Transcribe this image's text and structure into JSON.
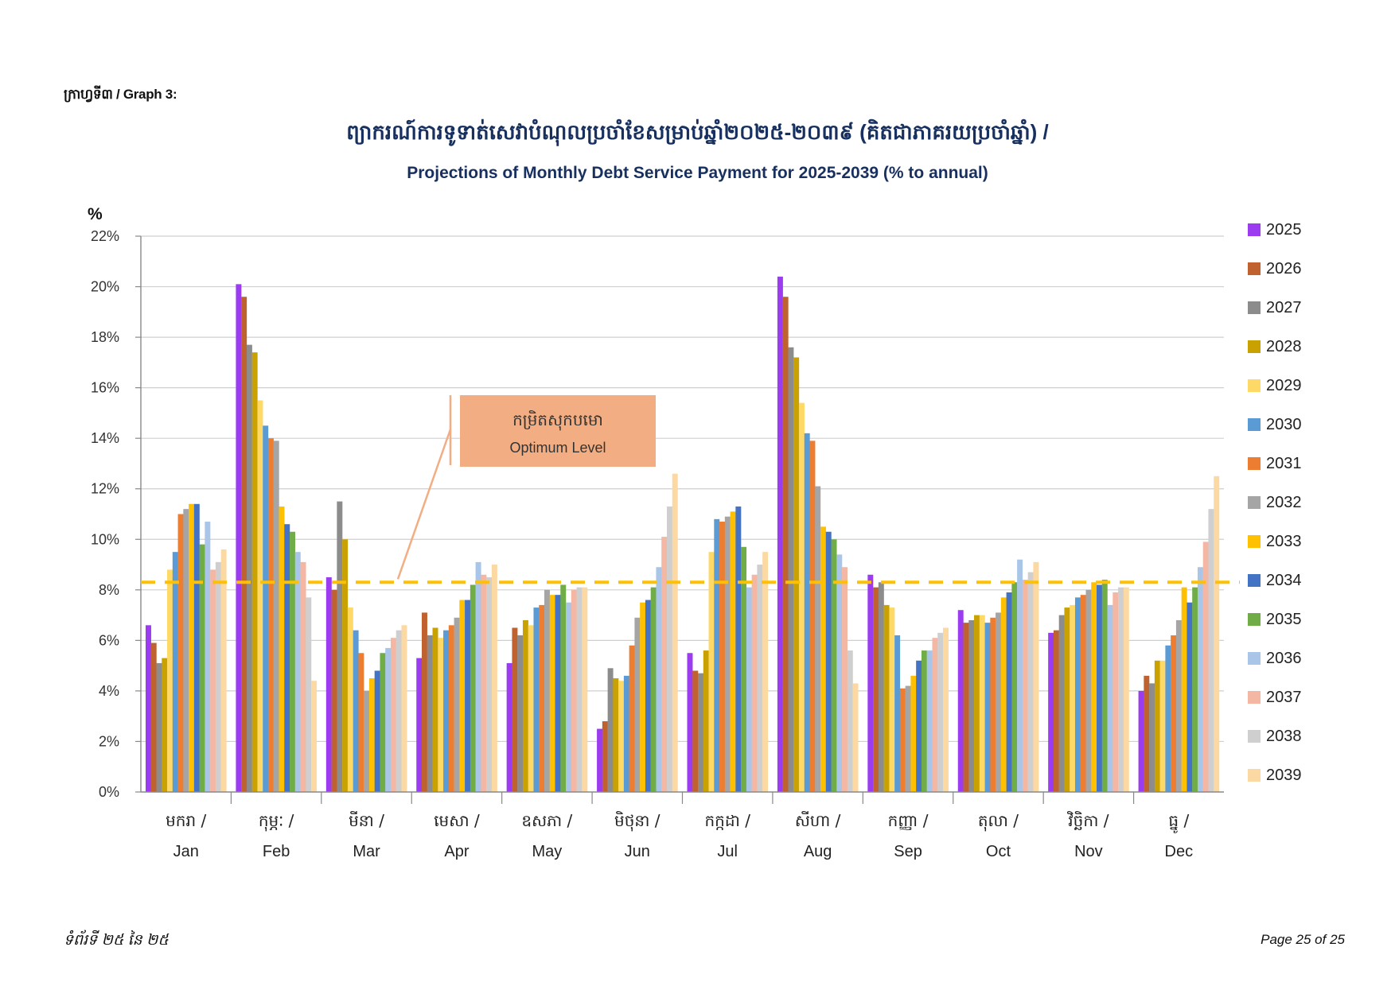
{
  "page": {
    "graph_label": "ក្រាហ្វទី៣ / Graph 3:",
    "title_km": "ព្យាករណ៍ការទូទាត់សេវាបំណុលប្រចាំខែសម្រាប់ឆ្នាំ២០២៥-២០៣៩ (គិតជាភាគរយប្រចាំឆ្នាំ) /",
    "title_en": "Projections of Monthly Debt Service Payment for 2025-2039 (% to annual)",
    "y_unit": "%",
    "footer_left": "ទំព័រទី ២៥ នៃ ២៥",
    "footer_right": "Page 25 of 25",
    "annotation": {
      "km": "កម្រិតសុកបមោ",
      "en": "Optimum Level"
    }
  },
  "chart_data": {
    "type": "bar",
    "ylim": [
      0,
      22
    ],
    "yticks": [
      "0%",
      "2%",
      "4%",
      "6%",
      "8%",
      "10%",
      "12%",
      "14%",
      "16%",
      "18%",
      "20%",
      "22%"
    ],
    "grid": true,
    "legend_position": "right",
    "optimum_level": 8.3,
    "categories_km": [
      "មករា /",
      "កុម្ភៈ /",
      "មីនា /",
      "មេសា /",
      "ឧសភា /",
      "មិថុនា /",
      "កក្កដា /",
      "សីហា /",
      "កញ្ញា /",
      "តុលា /",
      "វិច្ឆិកា /",
      "ធ្នូ /"
    ],
    "categories": [
      "Jan",
      "Feb",
      "Mar",
      "Apr",
      "May",
      "Jun",
      "Jul",
      "Aug",
      "Sep",
      "Oct",
      "Nov",
      "Dec"
    ],
    "series": [
      {
        "name": "2025",
        "color": "#9b3cf0",
        "values": [
          6.6,
          20.1,
          8.5,
          5.3,
          5.1,
          2.5,
          5.5,
          20.4,
          8.6,
          7.2,
          6.3,
          4.0
        ]
      },
      {
        "name": "2026",
        "color": "#c0622f",
        "values": [
          5.9,
          19.6,
          8.0,
          7.1,
          6.5,
          2.8,
          4.8,
          19.6,
          8.1,
          6.7,
          6.4,
          4.6
        ]
      },
      {
        "name": "2027",
        "color": "#8c8c8c",
        "values": [
          5.1,
          17.7,
          11.5,
          6.2,
          6.2,
          4.9,
          4.7,
          17.6,
          8.3,
          6.8,
          7.0,
          4.3
        ]
      },
      {
        "name": "2028",
        "color": "#c9a100",
        "values": [
          5.3,
          17.4,
          10.0,
          6.5,
          6.8,
          4.5,
          5.6,
          17.2,
          7.4,
          7.0,
          7.3,
          5.2
        ]
      },
      {
        "name": "2029",
        "color": "#ffd966",
        "values": [
          8.8,
          15.5,
          7.3,
          6.1,
          6.6,
          4.4,
          9.5,
          15.4,
          7.3,
          7.0,
          7.4,
          5.2
        ]
      },
      {
        "name": "2030",
        "color": "#5b9bd5",
        "values": [
          9.5,
          14.5,
          6.4,
          6.4,
          7.3,
          4.6,
          10.8,
          14.2,
          6.2,
          6.7,
          7.7,
          5.8
        ]
      },
      {
        "name": "2031",
        "color": "#ed7d31",
        "values": [
          11.0,
          14.0,
          5.5,
          6.6,
          7.4,
          5.8,
          10.7,
          13.9,
          4.1,
          6.9,
          7.8,
          6.2
        ]
      },
      {
        "name": "2032",
        "color": "#a5a5a5",
        "values": [
          11.2,
          13.9,
          4.0,
          6.9,
          8.0,
          6.9,
          10.9,
          12.1,
          4.2,
          7.1,
          8.0,
          6.8
        ]
      },
      {
        "name": "2033",
        "color": "#ffc000",
        "values": [
          11.4,
          11.3,
          4.5,
          7.6,
          7.8,
          7.5,
          11.1,
          10.5,
          4.6,
          7.7,
          8.3,
          8.1
        ]
      },
      {
        "name": "2034",
        "color": "#4472c4",
        "values": [
          11.4,
          10.6,
          4.8,
          7.6,
          7.8,
          7.6,
          11.3,
          10.3,
          5.2,
          7.9,
          8.2,
          7.5
        ]
      },
      {
        "name": "2035",
        "color": "#70ad47",
        "values": [
          9.8,
          10.3,
          5.5,
          8.2,
          8.2,
          8.1,
          9.7,
          10.0,
          5.6,
          8.3,
          8.4,
          8.1
        ]
      },
      {
        "name": "2036",
        "color": "#a9c6e8",
        "values": [
          10.7,
          9.5,
          5.7,
          9.1,
          7.5,
          8.9,
          8.1,
          9.4,
          5.6,
          9.2,
          7.4,
          8.9
        ]
      },
      {
        "name": "2037",
        "color": "#f4b7a3",
        "values": [
          8.8,
          9.1,
          6.1,
          8.6,
          8.0,
          10.1,
          8.6,
          8.9,
          6.1,
          8.4,
          7.9,
          9.9
        ]
      },
      {
        "name": "2038",
        "color": "#cfcfcf",
        "values": [
          9.1,
          7.7,
          6.4,
          8.5,
          8.1,
          11.3,
          9.0,
          5.6,
          6.3,
          8.7,
          8.1,
          11.2
        ]
      },
      {
        "name": "2039",
        "color": "#fcd9a3",
        "values": [
          9.6,
          4.4,
          6.6,
          9.0,
          8.1,
          12.6,
          9.5,
          4.3,
          6.5,
          9.1,
          8.1,
          12.5
        ]
      }
    ]
  }
}
